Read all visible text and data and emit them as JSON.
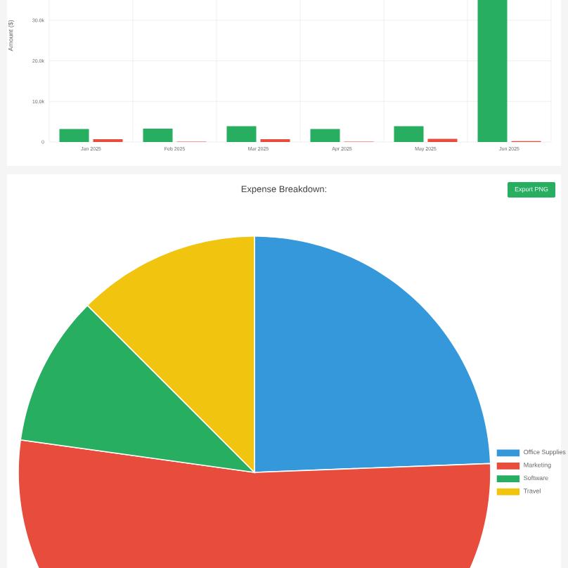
{
  "chart_data": [
    {
      "type": "bar",
      "ylabel": "Amount ($)",
      "categories": [
        "Jan 2025",
        "Feb 2025",
        "Mar 2025",
        "Apr 2025",
        "May 2025",
        "Jun 2025"
      ],
      "series": [
        {
          "color": "#27ae60",
          "values": [
            3200,
            3300,
            3900,
            3200,
            3900,
            35000
          ]
        },
        {
          "color": "#e74c3c",
          "values": [
            700,
            100,
            700,
            100,
            800,
            200
          ]
        }
      ],
      "ylim": [
        0,
        35000
      ],
      "yticks": [
        0,
        {
          "value": 10000,
          "label": "10.0k"
        },
        {
          "value": 20000,
          "label": "20.0k"
        },
        {
          "value": 30000,
          "label": "30.0k"
        }
      ],
      "grid": true
    },
    {
      "type": "pie",
      "title": "Expense Breakdown:",
      "categories": [
        "Office Supplies",
        "Marketing",
        "Software",
        "Travel"
      ],
      "values": [
        24.4,
        52.8,
        10.3,
        12.5
      ],
      "colors": [
        "#3498db",
        "#e74c3c",
        "#27ae60",
        "#f1c40f"
      ],
      "legend": "right",
      "annotations": [
        "Export PNG"
      ]
    }
  ]
}
